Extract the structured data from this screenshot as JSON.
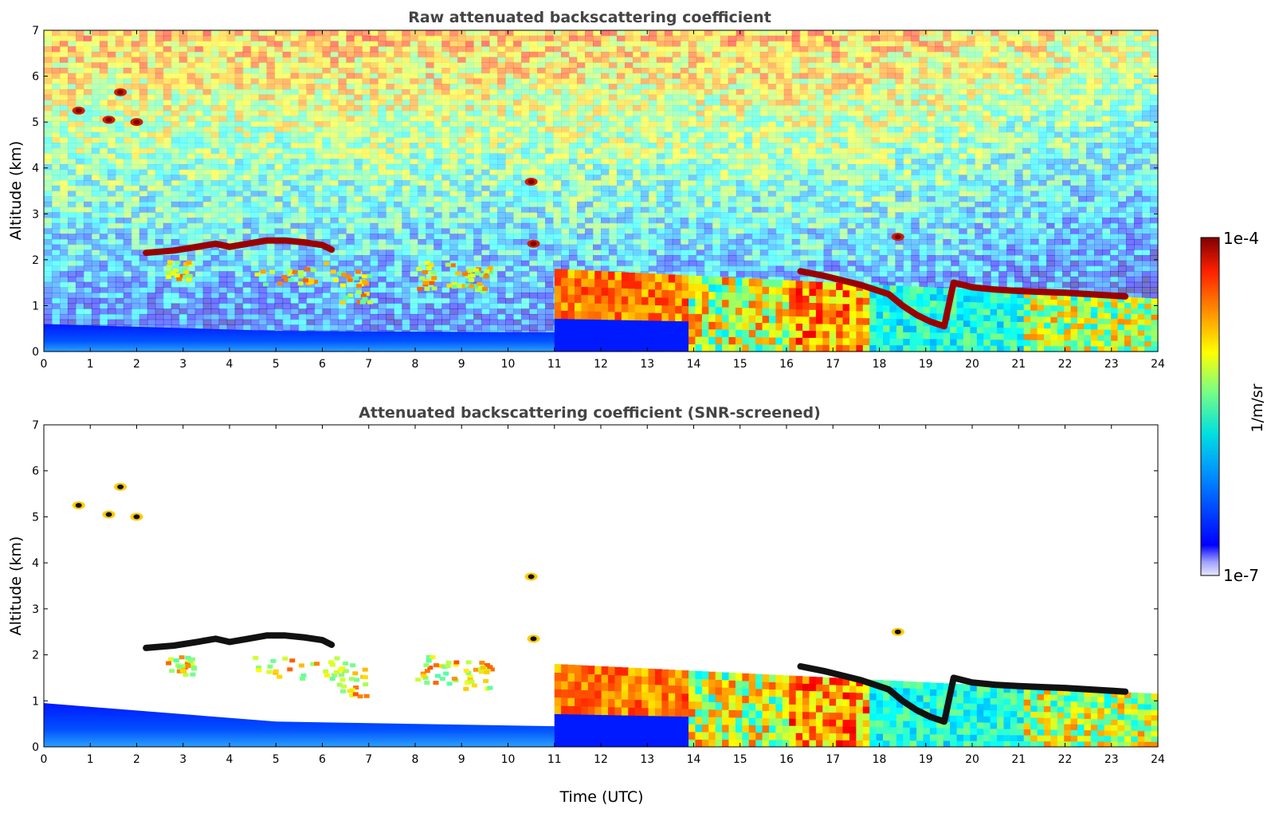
{
  "chart_data": [
    {
      "type": "heatmap",
      "title": "Raw attenuated backscattering coefficient",
      "xlabel": "",
      "ylabel": "Altitude (km)",
      "xlim": [
        0,
        24
      ],
      "ylim": [
        0,
        7
      ],
      "xticks": [
        0,
        1,
        2,
        3,
        4,
        5,
        6,
        7,
        8,
        9,
        10,
        11,
        12,
        13,
        14,
        15,
        16,
        17,
        18,
        19,
        20,
        21,
        22,
        23,
        24
      ],
      "yticks": [
        0,
        1,
        2,
        3,
        4,
        5,
        6,
        7
      ],
      "screened": false
    },
    {
      "type": "heatmap",
      "title": "Attenuated backscattering coefficient (SNR-screened)",
      "xlabel": "Time (UTC)",
      "ylabel": "Altitude (km)",
      "xlim": [
        0,
        24
      ],
      "ylim": [
        0,
        7
      ],
      "xticks": [
        0,
        1,
        2,
        3,
        4,
        5,
        6,
        7,
        8,
        9,
        10,
        11,
        12,
        13,
        14,
        15,
        16,
        17,
        18,
        19,
        20,
        21,
        22,
        23,
        24
      ],
      "yticks": [
        0,
        1,
        2,
        3,
        4,
        5,
        6,
        7
      ],
      "screened": true
    }
  ],
  "colorbar": {
    "label": "1/m/sr",
    "max_label": "1e-4",
    "min_label": "1e-7",
    "scale": "log",
    "range": [
      1e-07,
      0.0001
    ],
    "colormap": "jet"
  },
  "features": {
    "cloud_layer_main": {
      "t": [
        2.2,
        2.8,
        3.3,
        3.7,
        4.0,
        4.4,
        4.8,
        5.2,
        5.6,
        6.0,
        6.2
      ],
      "z": [
        2.15,
        2.2,
        2.28,
        2.35,
        2.28,
        2.35,
        2.42,
        2.42,
        2.38,
        2.32,
        2.22
      ]
    },
    "cloud_layer_late": {
      "t": [
        16.3,
        16.8,
        17.2,
        17.6,
        17.9,
        18.2,
        18.5,
        18.8,
        19.1,
        19.4,
        19.6,
        20.0,
        20.5,
        21.0,
        21.5,
        22.0,
        22.5,
        23.0,
        23.3
      ],
      "z": [
        1.75,
        1.65,
        1.55,
        1.45,
        1.35,
        1.25,
        1.0,
        0.8,
        0.65,
        0.55,
        1.5,
        1.4,
        1.35,
        1.32,
        1.3,
        1.28,
        1.25,
        1.22,
        1.2
      ]
    },
    "high_cloud_blobs": [
      {
        "t": 0.75,
        "z": 5.25
      },
      {
        "t": 1.4,
        "z": 5.05
      },
      {
        "t": 1.65,
        "z": 5.65
      },
      {
        "t": 2.0,
        "z": 5.0
      },
      {
        "t": 10.5,
        "z": 3.7
      },
      {
        "t": 10.55,
        "z": 2.35
      },
      {
        "t": 18.4,
        "z": 2.5
      }
    ]
  }
}
